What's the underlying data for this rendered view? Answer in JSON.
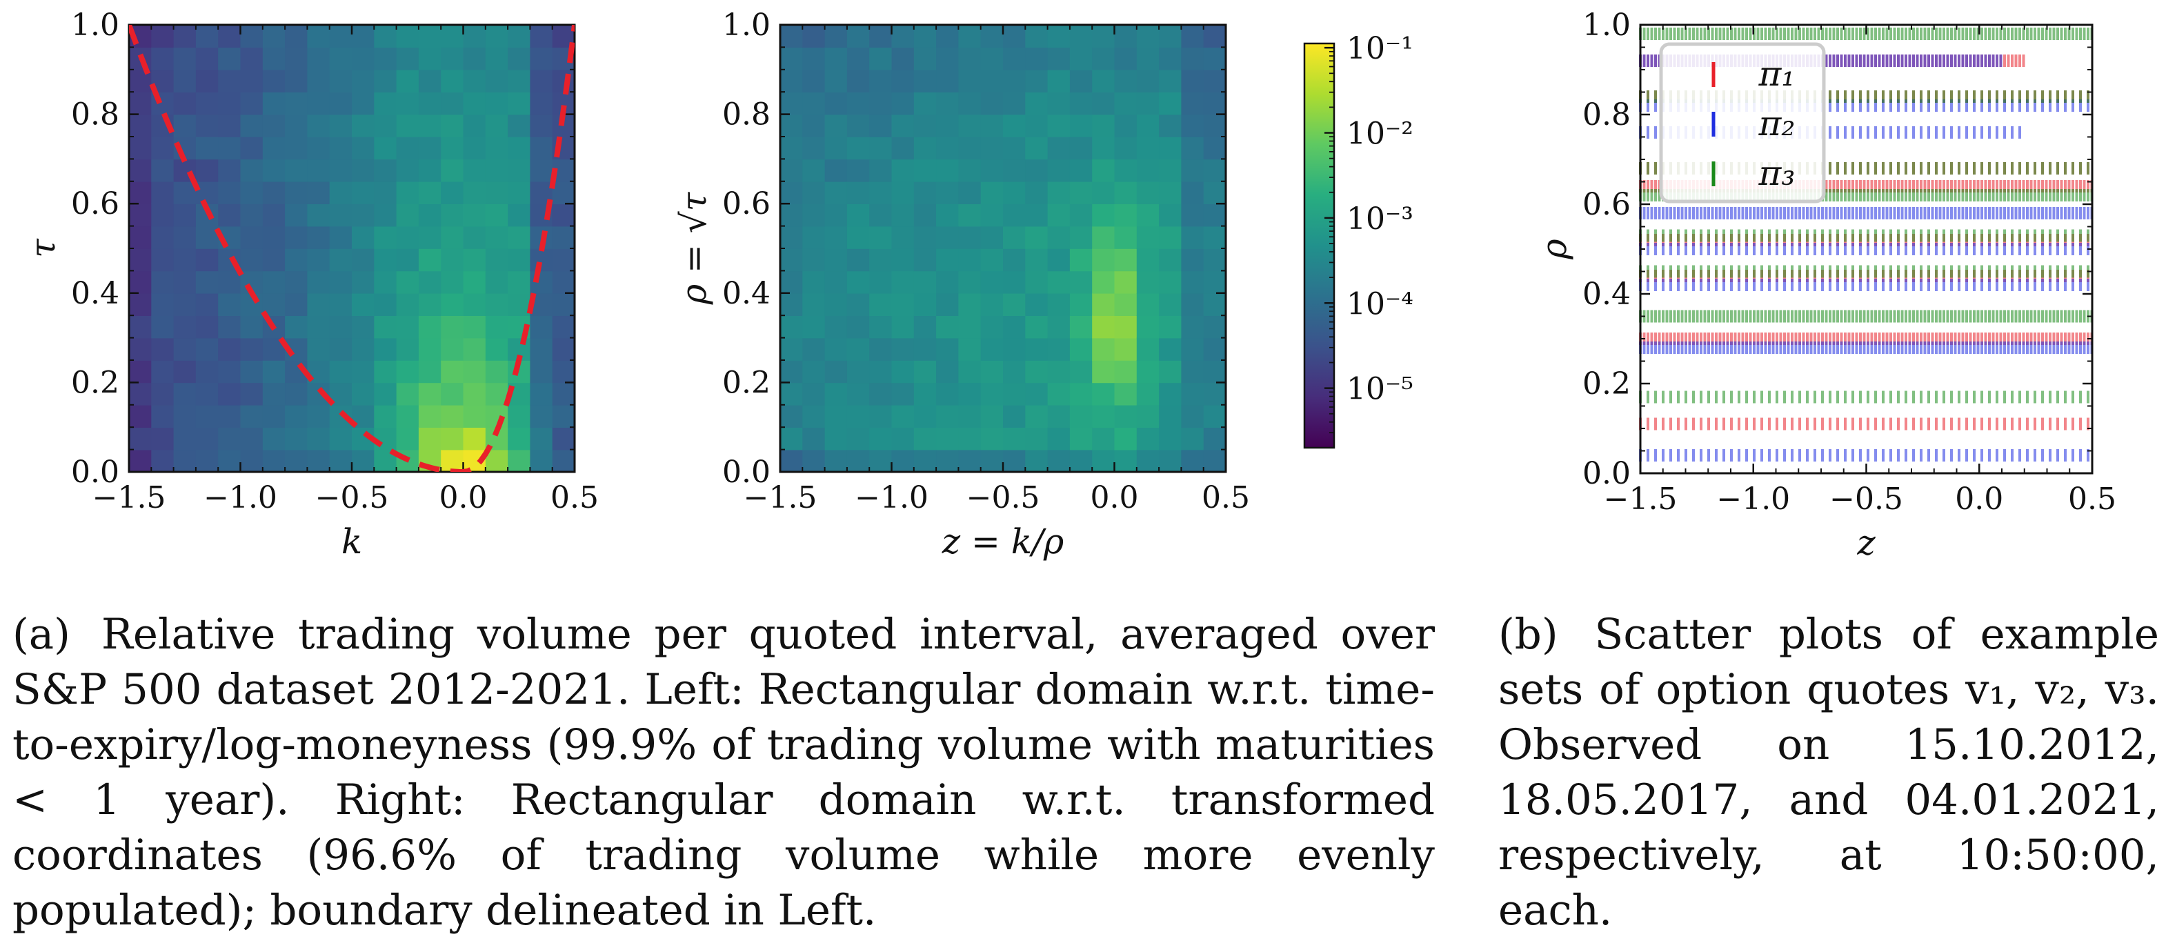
{
  "chart_data": [
    {
      "type": "heatmap",
      "panel": "a-left",
      "xlabel": "k",
      "ylabel": "τ",
      "xlim": [
        -1.5,
        0.5
      ],
      "ylim": [
        0.0,
        1.0
      ],
      "xticks": [
        "−1.5",
        "−1.0",
        "−0.5",
        "0.0",
        "0.5"
      ],
      "yticks": [
        "0.0",
        "0.2",
        "0.4",
        "0.6",
        "0.8",
        "1.0"
      ],
      "grid": false,
      "color_scale": "log10, viridis",
      "boundary_curve": {
        "style": "dashed",
        "color": "#e8202a",
        "description": "domain boundary (z = ±); from (−1.5, 1.0) down to (0.0, 0.0) and up to (0.5, 1.0)"
      }
    },
    {
      "type": "heatmap",
      "panel": "a-right",
      "xlabel": "z = k/ρ",
      "ylabel": "ρ = √τ",
      "xlim": [
        -1.5,
        0.5
      ],
      "ylim": [
        0.0,
        1.0
      ],
      "xticks": [
        "−1.5",
        "−1.0",
        "−0.5",
        "0.0",
        "0.5"
      ],
      "yticks": [
        "0.0",
        "0.2",
        "0.4",
        "0.6",
        "0.8",
        "1.0"
      ],
      "grid": false,
      "color_scale": "log10, viridis",
      "colorbar_ticks": [
        "10⁻¹",
        "10⁻²",
        "10⁻³",
        "10⁻⁴",
        "10⁻⁵"
      ],
      "colorbar_range_log10": [
        -5.7,
        -0.95
      ]
    },
    {
      "type": "scatter",
      "panel": "b",
      "xlabel": "z",
      "ylabel": "ρ",
      "xlim": [
        -1.5,
        0.5
      ],
      "ylim": [
        0.0,
        1.0
      ],
      "xticks": [
        "−1.5",
        "−1.0",
        "−0.5",
        "0.0",
        "0.5"
      ],
      "yticks": [
        "0.0",
        "0.2",
        "0.4",
        "0.6",
        "0.8",
        "1.0"
      ],
      "legend_position": "top-left",
      "marker": "vertical line",
      "series": [
        {
          "name": "π₁",
          "color": "#e8202a",
          "rows": [
            {
              "rho": 0.11,
              "z": [
                -1.5,
                0.5
              ]
            },
            {
              "rho": 0.3,
              "z": [
                -1.5,
                0.5
              ]
            },
            {
              "rho": 0.44,
              "z": [
                -1.5,
                0.5
              ]
            },
            {
              "rho": 0.52,
              "z": [
                -1.5,
                0.5
              ]
            },
            {
              "rho": 0.64,
              "z": [
                -1.5,
                0.5
              ]
            },
            {
              "rho": 0.68,
              "z": [
                -1.5,
                0.5
              ]
            },
            {
              "rho": 0.84,
              "z": [
                -1.5,
                0.5
              ]
            },
            {
              "rho": 0.92,
              "z": [
                -1.5,
                0.2
              ]
            }
          ]
        },
        {
          "name": "π₂",
          "color": "#1f2ee0",
          "rows": [
            {
              "rho": 0.04,
              "z": [
                -1.5,
                0.5
              ]
            },
            {
              "rho": 0.28,
              "z": [
                -1.5,
                0.5
              ]
            },
            {
              "rho": 0.42,
              "z": [
                -1.5,
                0.5
              ]
            },
            {
              "rho": 0.5,
              "z": [
                -1.5,
                0.5
              ]
            },
            {
              "rho": 0.58,
              "z": [
                -1.5,
                0.5
              ]
            },
            {
              "rho": 0.76,
              "z": [
                -1.5,
                0.2
              ]
            },
            {
              "rho": 0.82,
              "z": [
                -1.5,
                0.5
              ]
            },
            {
              "rho": 0.92,
              "z": [
                -1.5,
                0.1
              ]
            }
          ]
        },
        {
          "name": "π₃",
          "color": "#1a8a1a",
          "rows": [
            {
              "rho": 0.17,
              "z": [
                -1.5,
                0.5
              ]
            },
            {
              "rho": 0.35,
              "z": [
                -1.5,
                0.5
              ]
            },
            {
              "rho": 0.45,
              "z": [
                -1.5,
                0.5
              ]
            },
            {
              "rho": 0.53,
              "z": [
                -1.5,
                0.5
              ]
            },
            {
              "rho": 0.62,
              "z": [
                -1.5,
                0.5
              ]
            },
            {
              "rho": 0.68,
              "z": [
                -1.5,
                0.5
              ]
            },
            {
              "rho": 0.84,
              "z": [
                -1.5,
                0.5
              ]
            },
            {
              "rho": 0.98,
              "z": [
                -1.5,
                0.5
              ]
            }
          ]
        }
      ]
    }
  ],
  "captions": {
    "a": {
      "tag": "(a)",
      "text": "Relative trading volume per quoted interval, averaged over S&P 500 dataset 2012-2021. Left: Rectangular domain w.r.t. time-to-expiry/log-moneyness (99.9% of trading volume with maturities < 1 year). Right: Rectangular domain w.r.t. transformed coordinates (96.6% of trading volume while more evenly populated); boundary delineated in Left."
    },
    "b": {
      "tag": "(b)",
      "text": "Scatter plots of example sets of option quotes v₁, v₂, v₃. Observed on 15.10.2012, 18.05.2017, and 04.01.2021, respectively, at 10:50:00, each."
    }
  }
}
